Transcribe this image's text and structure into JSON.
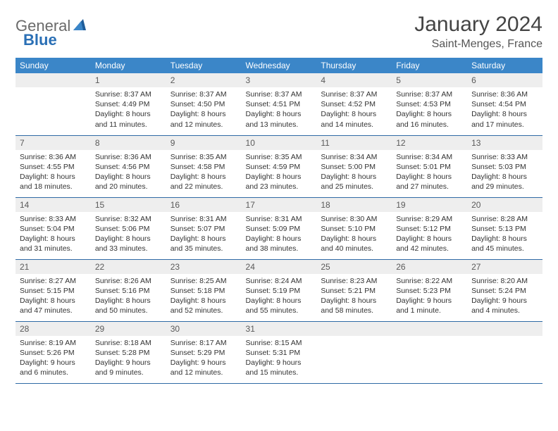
{
  "logo": {
    "text1": "General",
    "text2": "Blue"
  },
  "title": "January 2024",
  "location": "Saint-Menges, France",
  "weekdays": [
    "Sunday",
    "Monday",
    "Tuesday",
    "Wednesday",
    "Thursday",
    "Friday",
    "Saturday"
  ],
  "colors": {
    "header_bg": "#3b86c8",
    "header_fg": "#ffffff",
    "row_sep": "#2f6aa5",
    "daynum_bg": "#eeeeee",
    "text": "#333333"
  },
  "weeks": [
    [
      {
        "n": "",
        "lines": []
      },
      {
        "n": "1",
        "lines": [
          "Sunrise: 8:37 AM",
          "Sunset: 4:49 PM",
          "Daylight: 8 hours",
          "and 11 minutes."
        ]
      },
      {
        "n": "2",
        "lines": [
          "Sunrise: 8:37 AM",
          "Sunset: 4:50 PM",
          "Daylight: 8 hours",
          "and 12 minutes."
        ]
      },
      {
        "n": "3",
        "lines": [
          "Sunrise: 8:37 AM",
          "Sunset: 4:51 PM",
          "Daylight: 8 hours",
          "and 13 minutes."
        ]
      },
      {
        "n": "4",
        "lines": [
          "Sunrise: 8:37 AM",
          "Sunset: 4:52 PM",
          "Daylight: 8 hours",
          "and 14 minutes."
        ]
      },
      {
        "n": "5",
        "lines": [
          "Sunrise: 8:37 AM",
          "Sunset: 4:53 PM",
          "Daylight: 8 hours",
          "and 16 minutes."
        ]
      },
      {
        "n": "6",
        "lines": [
          "Sunrise: 8:36 AM",
          "Sunset: 4:54 PM",
          "Daylight: 8 hours",
          "and 17 minutes."
        ]
      }
    ],
    [
      {
        "n": "7",
        "lines": [
          "Sunrise: 8:36 AM",
          "Sunset: 4:55 PM",
          "Daylight: 8 hours",
          "and 18 minutes."
        ]
      },
      {
        "n": "8",
        "lines": [
          "Sunrise: 8:36 AM",
          "Sunset: 4:56 PM",
          "Daylight: 8 hours",
          "and 20 minutes."
        ]
      },
      {
        "n": "9",
        "lines": [
          "Sunrise: 8:35 AM",
          "Sunset: 4:58 PM",
          "Daylight: 8 hours",
          "and 22 minutes."
        ]
      },
      {
        "n": "10",
        "lines": [
          "Sunrise: 8:35 AM",
          "Sunset: 4:59 PM",
          "Daylight: 8 hours",
          "and 23 minutes."
        ]
      },
      {
        "n": "11",
        "lines": [
          "Sunrise: 8:34 AM",
          "Sunset: 5:00 PM",
          "Daylight: 8 hours",
          "and 25 minutes."
        ]
      },
      {
        "n": "12",
        "lines": [
          "Sunrise: 8:34 AM",
          "Sunset: 5:01 PM",
          "Daylight: 8 hours",
          "and 27 minutes."
        ]
      },
      {
        "n": "13",
        "lines": [
          "Sunrise: 8:33 AM",
          "Sunset: 5:03 PM",
          "Daylight: 8 hours",
          "and 29 minutes."
        ]
      }
    ],
    [
      {
        "n": "14",
        "lines": [
          "Sunrise: 8:33 AM",
          "Sunset: 5:04 PM",
          "Daylight: 8 hours",
          "and 31 minutes."
        ]
      },
      {
        "n": "15",
        "lines": [
          "Sunrise: 8:32 AM",
          "Sunset: 5:06 PM",
          "Daylight: 8 hours",
          "and 33 minutes."
        ]
      },
      {
        "n": "16",
        "lines": [
          "Sunrise: 8:31 AM",
          "Sunset: 5:07 PM",
          "Daylight: 8 hours",
          "and 35 minutes."
        ]
      },
      {
        "n": "17",
        "lines": [
          "Sunrise: 8:31 AM",
          "Sunset: 5:09 PM",
          "Daylight: 8 hours",
          "and 38 minutes."
        ]
      },
      {
        "n": "18",
        "lines": [
          "Sunrise: 8:30 AM",
          "Sunset: 5:10 PM",
          "Daylight: 8 hours",
          "and 40 minutes."
        ]
      },
      {
        "n": "19",
        "lines": [
          "Sunrise: 8:29 AM",
          "Sunset: 5:12 PM",
          "Daylight: 8 hours",
          "and 42 minutes."
        ]
      },
      {
        "n": "20",
        "lines": [
          "Sunrise: 8:28 AM",
          "Sunset: 5:13 PM",
          "Daylight: 8 hours",
          "and 45 minutes."
        ]
      }
    ],
    [
      {
        "n": "21",
        "lines": [
          "Sunrise: 8:27 AM",
          "Sunset: 5:15 PM",
          "Daylight: 8 hours",
          "and 47 minutes."
        ]
      },
      {
        "n": "22",
        "lines": [
          "Sunrise: 8:26 AM",
          "Sunset: 5:16 PM",
          "Daylight: 8 hours",
          "and 50 minutes."
        ]
      },
      {
        "n": "23",
        "lines": [
          "Sunrise: 8:25 AM",
          "Sunset: 5:18 PM",
          "Daylight: 8 hours",
          "and 52 minutes."
        ]
      },
      {
        "n": "24",
        "lines": [
          "Sunrise: 8:24 AM",
          "Sunset: 5:19 PM",
          "Daylight: 8 hours",
          "and 55 minutes."
        ]
      },
      {
        "n": "25",
        "lines": [
          "Sunrise: 8:23 AM",
          "Sunset: 5:21 PM",
          "Daylight: 8 hours",
          "and 58 minutes."
        ]
      },
      {
        "n": "26",
        "lines": [
          "Sunrise: 8:22 AM",
          "Sunset: 5:23 PM",
          "Daylight: 9 hours",
          "and 1 minute."
        ]
      },
      {
        "n": "27",
        "lines": [
          "Sunrise: 8:20 AM",
          "Sunset: 5:24 PM",
          "Daylight: 9 hours",
          "and 4 minutes."
        ]
      }
    ],
    [
      {
        "n": "28",
        "lines": [
          "Sunrise: 8:19 AM",
          "Sunset: 5:26 PM",
          "Daylight: 9 hours",
          "and 6 minutes."
        ]
      },
      {
        "n": "29",
        "lines": [
          "Sunrise: 8:18 AM",
          "Sunset: 5:28 PM",
          "Daylight: 9 hours",
          "and 9 minutes."
        ]
      },
      {
        "n": "30",
        "lines": [
          "Sunrise: 8:17 AM",
          "Sunset: 5:29 PM",
          "Daylight: 9 hours",
          "and 12 minutes."
        ]
      },
      {
        "n": "31",
        "lines": [
          "Sunrise: 8:15 AM",
          "Sunset: 5:31 PM",
          "Daylight: 9 hours",
          "and 15 minutes."
        ]
      },
      {
        "n": "",
        "lines": []
      },
      {
        "n": "",
        "lines": []
      },
      {
        "n": "",
        "lines": []
      }
    ]
  ]
}
